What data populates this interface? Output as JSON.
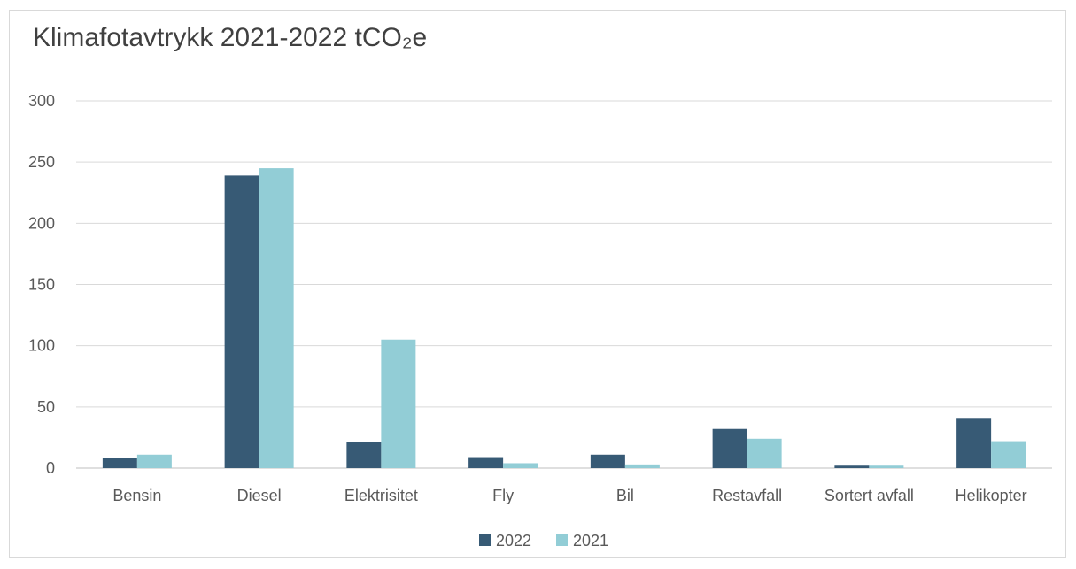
{
  "chart_data": {
    "type": "bar",
    "title": "Klimafotavtrykk 2021-2022 tCO₂e",
    "categories": [
      "Bensin",
      "Diesel",
      "Elektrisitet",
      "Fly",
      "Bil",
      "Restavfall",
      "Sortert avfall",
      "Helikopter"
    ],
    "series": [
      {
        "name": "2022",
        "color": "#375a75",
        "values": [
          8,
          239,
          21,
          9,
          11,
          32,
          2,
          41
        ]
      },
      {
        "name": "2021",
        "color": "#92cdd6",
        "values": [
          11,
          245,
          105,
          4,
          3,
          24,
          2,
          22
        ]
      }
    ],
    "ylim": [
      0,
      300
    ],
    "yticks": [
      0,
      50,
      100,
      150,
      200,
      250,
      300
    ],
    "grid": true,
    "legend": "bottom"
  }
}
